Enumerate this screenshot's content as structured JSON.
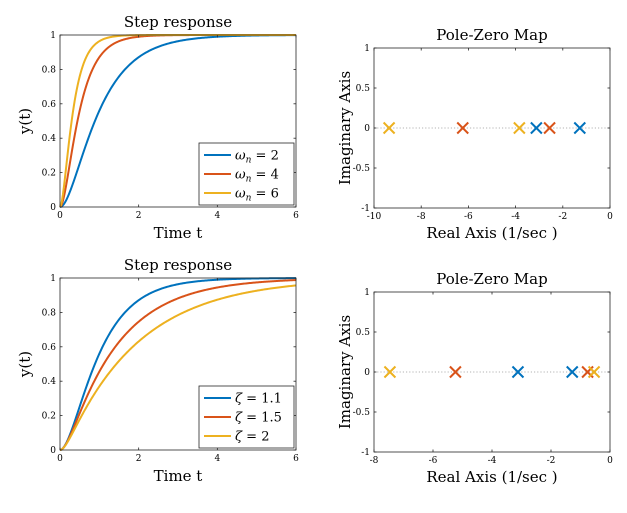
{
  "colors": {
    "blue": "#0072BD",
    "orange": "#D95319",
    "yellow": "#EDB120"
  },
  "chart_data": [
    {
      "type": "line",
      "title": "Step response",
      "xlabel": "Time t",
      "ylabel": "y(t)",
      "xlim": [
        0,
        6
      ],
      "ylim": [
        0,
        1
      ],
      "xticks": [
        0,
        2,
        4,
        6
      ],
      "xtick_labels": [
        "0",
        "2",
        "4",
        "6"
      ],
      "yticks": [
        0,
        0.2,
        0.4,
        0.6,
        0.8,
        1
      ],
      "ytick_labels": [
        "0",
        "0.2",
        "0.4",
        "0.6",
        "0.8",
        "1"
      ],
      "legend_position": "bottom-right",
      "model": {
        "zeta": 1.1,
        "omega_n": 2
      },
      "series": [
        {
          "name": "ω_n = 2",
          "legend_symbol": "ω",
          "legend_sub": "n",
          "legend_rest": " = 2",
          "color": "#0072BD",
          "zeta": 1.1,
          "omega_n": 2,
          "y_at_t": [
            0,
            0.21,
            0.53,
            0.76,
            0.88,
            0.95,
            0.98,
            0.99,
            1.0,
            1.0,
            1.0,
            1.0,
            1.0
          ]
        },
        {
          "name": "ω_n = 4",
          "legend_symbol": "ω",
          "legend_sub": "n",
          "legend_rest": " = 4",
          "color": "#D95319",
          "zeta": 1.1,
          "omega_n": 4,
          "y_at_t": [
            0,
            0.53,
            0.88,
            0.98,
            1.0,
            1.0,
            1.0,
            1.0,
            1.0,
            1.0,
            1.0,
            1.0,
            1.0
          ]
        },
        {
          "name": "ω_n = 6",
          "legend_symbol": "ω",
          "legend_sub": "n",
          "legend_rest": " = 6",
          "color": "#EDB120",
          "zeta": 1.1,
          "omega_n": 6,
          "y_at_t": [
            0,
            0.76,
            0.98,
            1.0,
            1.0,
            1.0,
            1.0,
            1.0,
            1.0,
            1.0,
            1.0,
            1.0,
            1.0
          ]
        }
      ],
      "t_sample": [
        0,
        0.5,
        1,
        1.5,
        2,
        2.5,
        3,
        3.5,
        4,
        4.5,
        5,
        5.5,
        6
      ]
    },
    {
      "type": "scatter",
      "title": "Pole-Zero Map",
      "xlabel": "Real Axis (1/sec )",
      "ylabel": "Imaginary Axis",
      "xlim": [
        -10,
        0
      ],
      "ylim": [
        -1,
        1
      ],
      "xticks": [
        -10,
        -8,
        -6,
        -4,
        -2,
        0
      ],
      "xtick_labels": [
        "-10",
        "-8",
        "-6",
        "-4",
        "-2",
        "0"
      ],
      "yticks": [
        -1,
        -0.5,
        0,
        0.5,
        1
      ],
      "ytick_labels": [
        "-1",
        "-0.5",
        "0",
        "0.5",
        "1"
      ],
      "marker": "x",
      "series": [
        {
          "name": "ω_n = 2",
          "color": "#0072BD",
          "x": [
            -1.28,
            -3.12
          ],
          "y": [
            0,
            0
          ]
        },
        {
          "name": "ω_n = 4",
          "color": "#D95319",
          "x": [
            -2.56,
            -6.24
          ],
          "y": [
            0,
            0
          ]
        },
        {
          "name": "ω_n = 6",
          "color": "#EDB120",
          "x": [
            -3.84,
            -9.36
          ],
          "y": [
            0,
            0
          ]
        }
      ]
    },
    {
      "type": "line",
      "title": "Step response",
      "xlabel": "Time t",
      "ylabel": "y(t)",
      "xlim": [
        0,
        6
      ],
      "ylim": [
        0,
        1
      ],
      "xticks": [
        0,
        2,
        4,
        6
      ],
      "xtick_labels": [
        "0",
        "2",
        "4",
        "6"
      ],
      "yticks": [
        0,
        0.2,
        0.4,
        0.6,
        0.8,
        1
      ],
      "ytick_labels": [
        "0",
        "0.2",
        "0.4",
        "0.6",
        "0.8",
        "1"
      ],
      "legend_position": "bottom-right",
      "series": [
        {
          "name": "ζ = 1.1",
          "legend_symbol": "ζ",
          "legend_sub": "",
          "legend_rest": " = 1.1",
          "color": "#0072BD",
          "zeta": 1.1,
          "omega_n": 2,
          "y_at_t": [
            0,
            0.21,
            0.53,
            0.76,
            0.88,
            0.95,
            0.98,
            0.99,
            1.0,
            1.0,
            1.0,
            1.0,
            1.0
          ]
        },
        {
          "name": "ζ = 1.5",
          "legend_symbol": "ζ",
          "legend_sub": "",
          "legend_rest": " = 1.5",
          "color": "#D95319",
          "zeta": 1.5,
          "omega_n": 2,
          "y_at_t": [
            0,
            0.17,
            0.44,
            0.65,
            0.79,
            0.88,
            0.93,
            0.96,
            0.98,
            0.99,
            0.99,
            1.0,
            1.0
          ]
        },
        {
          "name": "ζ = 2",
          "legend_symbol": "ζ",
          "legend_sub": "",
          "legend_rest": " = 2",
          "color": "#EDB120",
          "zeta": 2,
          "omega_n": 2,
          "y_at_t": [
            0,
            0.13,
            0.35,
            0.53,
            0.67,
            0.77,
            0.84,
            0.89,
            0.92,
            0.94,
            0.96,
            0.97,
            0.98
          ]
        }
      ],
      "t_sample": [
        0,
        0.5,
        1,
        1.5,
        2,
        2.5,
        3,
        3.5,
        4,
        4.5,
        5,
        5.5,
        6
      ]
    },
    {
      "type": "scatter",
      "title": "Pole-Zero Map",
      "xlabel": "Real Axis (1/sec )",
      "ylabel": "Imaginary Axis",
      "xlim": [
        -8,
        0
      ],
      "ylim": [
        -1,
        1
      ],
      "xticks": [
        -8,
        -6,
        -4,
        -2,
        0
      ],
      "xtick_labels": [
        "-8",
        "-6",
        "-4",
        "-2",
        "0"
      ],
      "yticks": [
        -1,
        -0.5,
        0,
        0.5,
        1
      ],
      "ytick_labels": [
        "-1",
        "-0.5",
        "0",
        "0.5",
        "1"
      ],
      "marker": "x",
      "series": [
        {
          "name": "ζ = 1.1",
          "color": "#0072BD",
          "x": [
            -1.28,
            -3.12
          ],
          "y": [
            0,
            0
          ]
        },
        {
          "name": "ζ = 1.5",
          "color": "#D95319",
          "x": [
            -0.76,
            -5.24
          ],
          "y": [
            0,
            0
          ]
        },
        {
          "name": "ζ = 2",
          "color": "#EDB120",
          "x": [
            -0.54,
            -7.46
          ],
          "y": [
            0,
            0
          ]
        }
      ]
    }
  ]
}
